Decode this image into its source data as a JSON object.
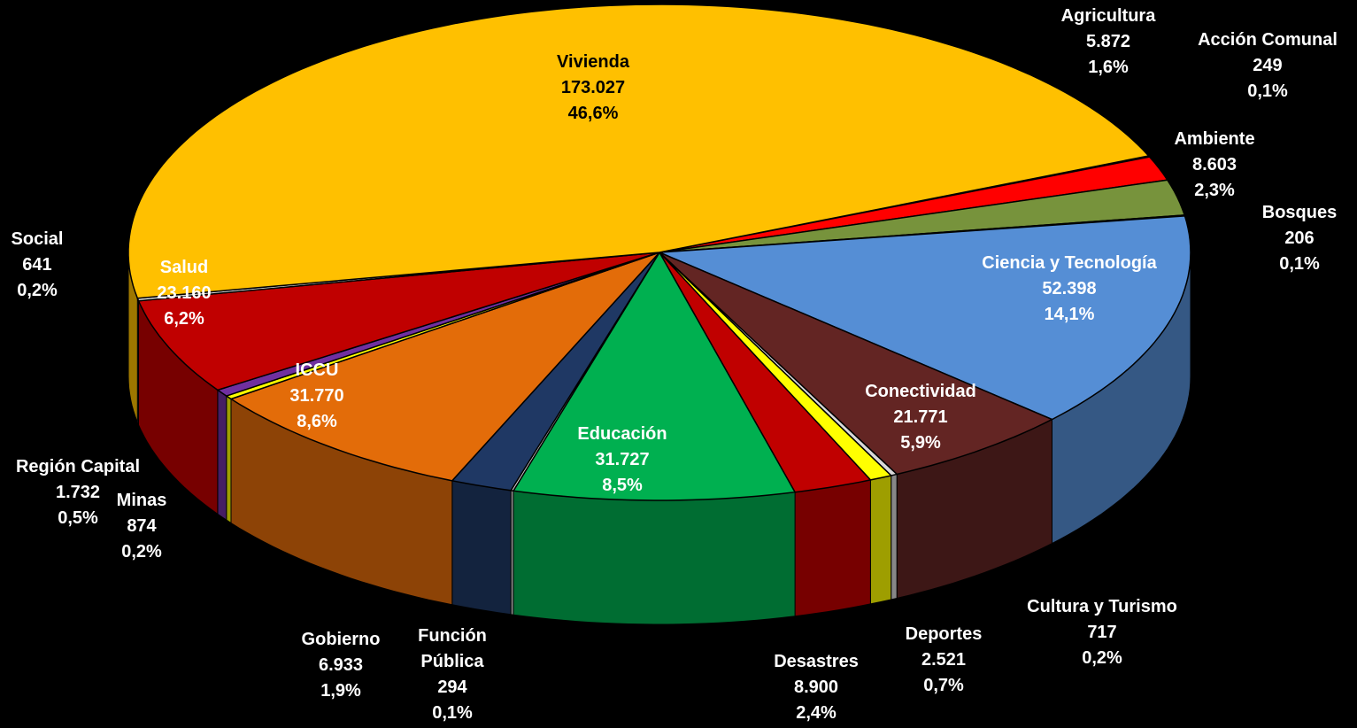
{
  "chart_data": {
    "type": "pie3d",
    "categories": [
      "Acción Comunal",
      "Agricultura",
      "Ambiente",
      "Bosques",
      "Ciencia y Tecnología",
      "Conectividad",
      "Cultura y Turismo",
      "Deportes",
      "Desastres",
      "Educación",
      "Función Pública",
      "Gobierno",
      "ICCU",
      "Minas",
      "Región Capital",
      "Salud",
      "Social",
      "Vivienda"
    ],
    "values": [
      249,
      5872,
      8603,
      206,
      52398,
      21771,
      717,
      2521,
      8900,
      31727,
      294,
      6933,
      31770,
      874,
      1732,
      23160,
      641,
      173027
    ],
    "value_labels": [
      "249",
      "5.872",
      "8.603",
      "206",
      "52.398",
      "21.771",
      "717",
      "2.521",
      "8.900",
      "31.727",
      "294",
      "6.933",
      "31.770",
      "874",
      "1.732",
      "23.160",
      "641",
      "173.027"
    ],
    "percents": [
      0.1,
      1.6,
      2.3,
      0.1,
      14.1,
      5.9,
      0.2,
      0.7,
      2.4,
      8.5,
      0.1,
      1.9,
      8.6,
      0.2,
      0.5,
      6.2,
      0.2,
      46.6
    ],
    "percent_labels": [
      "0,1%",
      "1,6%",
      "2,3%",
      "0,1%",
      "14,1%",
      "5,9%",
      "0,2%",
      "0,7%",
      "2,4%",
      "8,5%",
      "0,1%",
      "1,9%",
      "8,6%",
      "0,2%",
      "0,5%",
      "6,2%",
      "0,2%",
      "46,6%"
    ],
    "colors": [
      "#a6a6a6",
      "#ff0000",
      "#77933c",
      "#a6a6a6",
      "#558ed5",
      "#632523",
      "#d9d9d9",
      "#ffff00",
      "#c00000",
      "#00b050",
      "#d9d9d9",
      "#1f3864",
      "#e36c09",
      "#ffff00",
      "#7030a0",
      "#c00000",
      "#d9d9d9",
      "#ffc000"
    ]
  }
}
